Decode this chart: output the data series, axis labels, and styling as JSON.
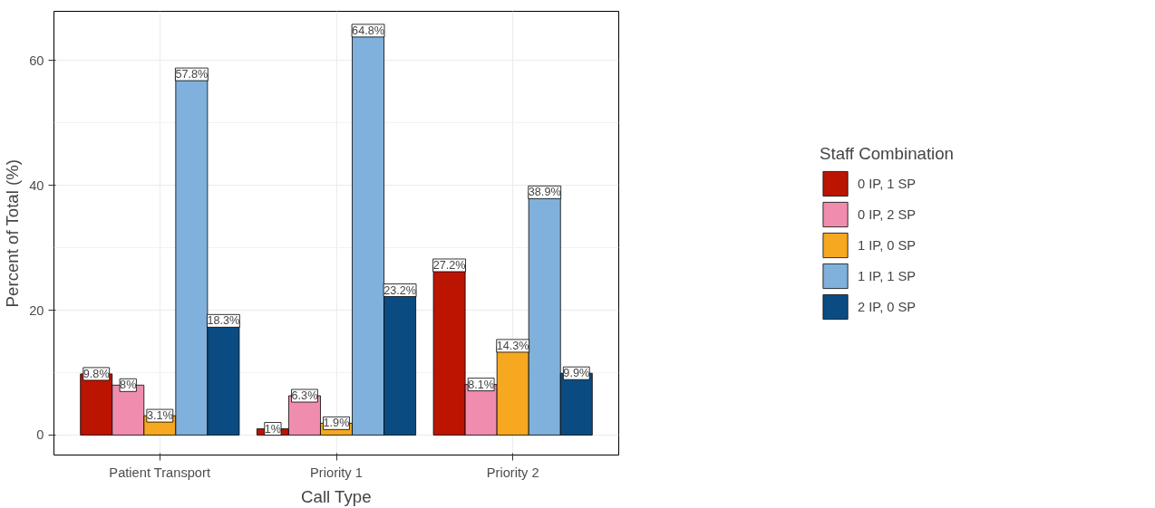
{
  "chart_data": {
    "type": "bar",
    "xlabel": "Call Type",
    "ylabel": "Percent of Total (%)",
    "legend_title": "Staff Combination",
    "categories": [
      "Patient Transport",
      "Priority 1",
      "Priority 2"
    ],
    "series": [
      {
        "name": "0 IP, 1 SP",
        "color": "#bb1502",
        "values": [
          9.8,
          1,
          27.2
        ],
        "value_labels": [
          "9.8%",
          "1%",
          "27.2%"
        ]
      },
      {
        "name": "0 IP, 2 SP",
        "color": "#f08dae",
        "values": [
          8,
          6.3,
          8.1
        ],
        "value_labels": [
          "8%",
          "6.3%",
          "8.1%"
        ]
      },
      {
        "name": "1 IP, 0 SP",
        "color": "#f6a821",
        "values": [
          3.1,
          1.9,
          14.3
        ],
        "value_labels": [
          "3.1%",
          "1.9%",
          "14.3%"
        ]
      },
      {
        "name": "1 IP, 1 SP",
        "color": "#7fb1dc",
        "values": [
          57.8,
          64.8,
          38.9
        ],
        "value_labels": [
          "57.8%",
          "64.8%",
          "38.9%"
        ]
      },
      {
        "name": "2 IP, 0 SP",
        "color": "#0a4c82",
        "values": [
          18.3,
          23.2,
          9.9
        ],
        "value_labels": [
          "18.3%",
          "23.2%",
          "9.9%"
        ]
      }
    ],
    "ylim": [
      -3.2,
      67.9
    ],
    "yticks": [
      0,
      20,
      40,
      60
    ],
    "grid": true,
    "legend": "right"
  }
}
